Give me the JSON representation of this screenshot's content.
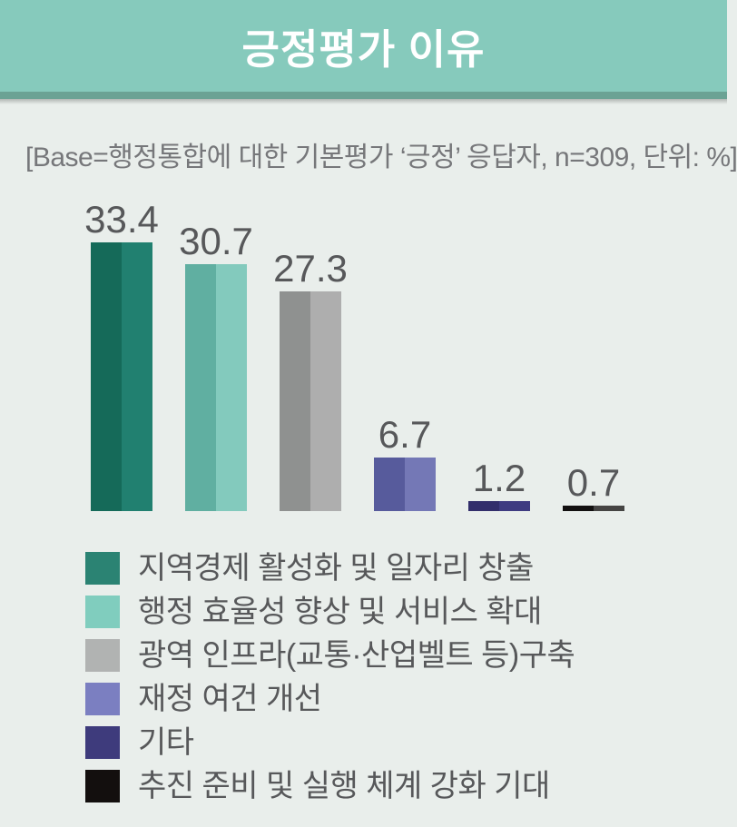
{
  "header": {
    "title": "긍정평가 이유",
    "bg_color": "#86cabc",
    "strip_color": "#6ba294",
    "title_color": "#ffffff"
  },
  "base_note": {
    "text": "[Base=행정통합에 대한 기본평가 ‘긍정’ 응답자, n=309, 단위: %]"
  },
  "chart_data": {
    "type": "bar",
    "title": "긍정평가 이유",
    "unit": "%",
    "base_n": 309,
    "categories": [
      "지역경제 활성화 및 일자리 창출",
      "행정 효율성 향상 및 서비스 확대",
      "광역 인프라(교통·산업벨트 등)구축",
      "재정 여건 개선",
      "기타",
      "추진 준비 및 실행 체계 강화 기대"
    ],
    "values": [
      33.4,
      30.7,
      27.3,
      6.7,
      1.2,
      0.7
    ],
    "value_labels": [
      "33.4",
      "30.7",
      "27.3",
      "6.7",
      "1.2",
      "0.7"
    ],
    "ylim": [
      0,
      35
    ],
    "grid": false,
    "x_axis_labels": false,
    "legend_position": "bottom",
    "bar_colors": [
      {
        "left": "#156a59",
        "right": "#218070"
      },
      {
        "left": "#60afa1",
        "right": "#83cabd"
      },
      {
        "left": "#8f9190",
        "right": "#aeaeae"
      },
      {
        "left": "#575b9c",
        "right": "#7478b6"
      },
      {
        "left": "#322e6b",
        "right": "#3e3b81"
      },
      {
        "left": "#121010",
        "right": "#454443"
      }
    ],
    "legend_colors": [
      "#2b8373",
      "#80cdbe",
      "#b1b3b2",
      "#7b7fc1",
      "#3e3b7c",
      "#130f0e"
    ],
    "value_label_color": "#57585a",
    "legend_text_color": "#57585a",
    "background_color": "#e9eeeb"
  }
}
